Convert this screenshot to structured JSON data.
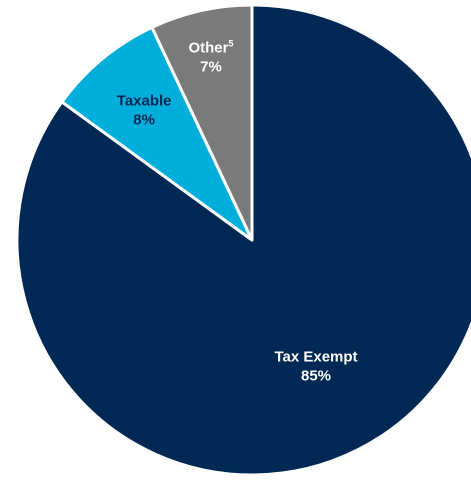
{
  "chart_data": {
    "type": "pie",
    "title": "",
    "slices": [
      {
        "label": "Tax Exempt",
        "superscript": "",
        "value": 85,
        "value_label": "85%",
        "color": "#002855",
        "label_color": "#ffffff"
      },
      {
        "label": "Taxable",
        "superscript": "",
        "value": 8,
        "value_label": "8%",
        "color": "#00AEDB",
        "label_color": "#002855"
      },
      {
        "label": "Other",
        "superscript": "5",
        "value": 7,
        "value_label": "7%",
        "color": "#7A7A7A",
        "label_color": "#ffffff"
      }
    ],
    "start_angle": "12 o'clock",
    "direction": "clockwise",
    "legend": "none"
  }
}
